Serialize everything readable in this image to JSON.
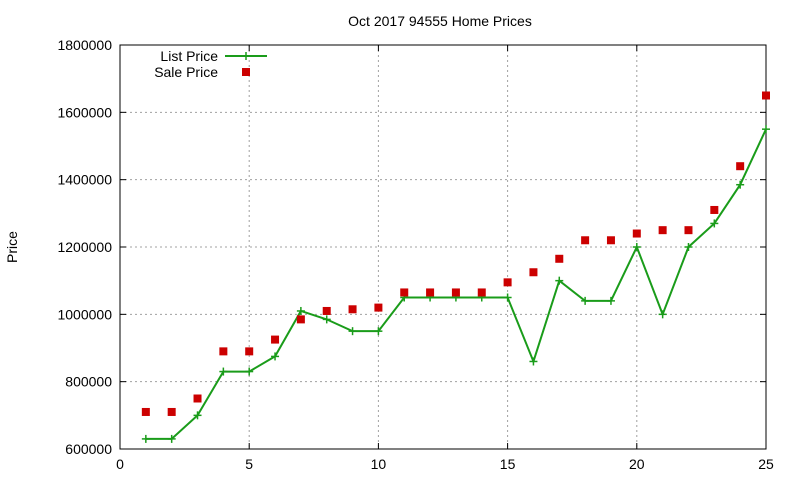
{
  "chart_data": {
    "type": "line",
    "title": "Oct 2017 94555 Home Prices",
    "xlabel": "",
    "ylabel": "Price",
    "xlim": [
      0,
      25
    ],
    "ylim": [
      600000,
      1800000
    ],
    "x_ticks": [
      0,
      5,
      10,
      15,
      20,
      25
    ],
    "y_ticks": [
      600000,
      800000,
      1000000,
      1200000,
      1400000,
      1600000,
      1800000
    ],
    "grid": true,
    "legend_position": "top-left",
    "x": [
      1,
      2,
      3,
      4,
      5,
      6,
      7,
      8,
      9,
      10,
      11,
      12,
      13,
      14,
      15,
      16,
      17,
      18,
      19,
      20,
      21,
      22,
      23,
      24,
      25
    ],
    "series": [
      {
        "name": "List Price",
        "style": "line+cross",
        "color": "#1a9c1a",
        "values": [
          630000,
          630000,
          700000,
          830000,
          830000,
          875000,
          1010000,
          985000,
          950000,
          950000,
          1050000,
          1050000,
          1050000,
          1050000,
          1050000,
          860000,
          1100000,
          1040000,
          1040000,
          1200000,
          1000000,
          1200000,
          1270000,
          1385000,
          1550000
        ]
      },
      {
        "name": "Sale Price",
        "style": "square-points",
        "color": "#cc0000",
        "values": [
          710000,
          710000,
          750000,
          890000,
          890000,
          925000,
          985000,
          1010000,
          1015000,
          1020000,
          1065000,
          1065000,
          1065000,
          1065000,
          1095000,
          1125000,
          1165000,
          1220000,
          1220000,
          1240000,
          1250000,
          1250000,
          1310000,
          1440000,
          1650000
        ]
      }
    ]
  }
}
